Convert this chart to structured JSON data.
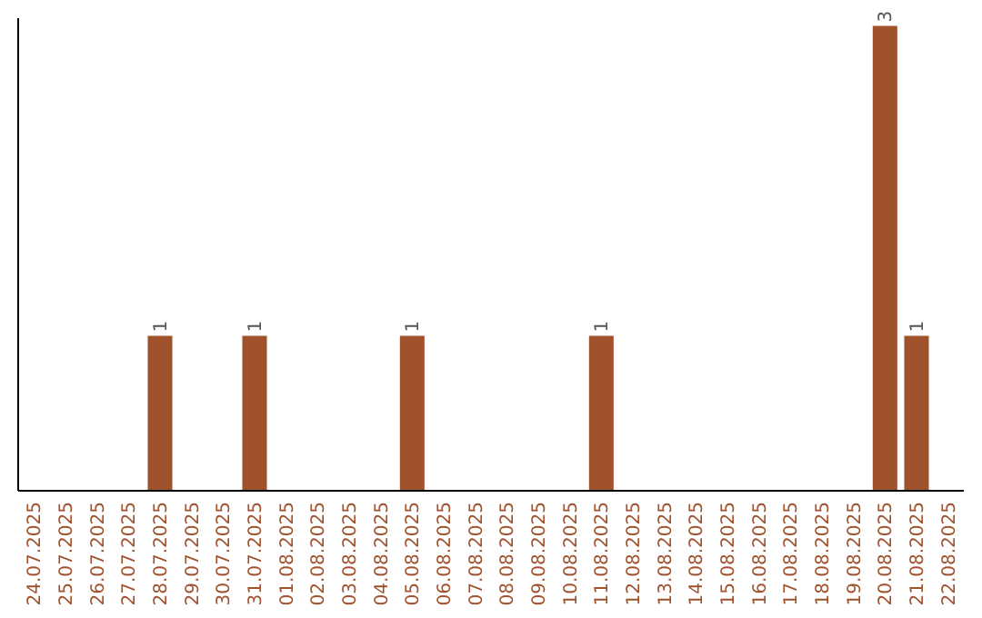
{
  "chart_data": {
    "type": "bar",
    "categories": [
      "24.07.2025",
      "25.07.2025",
      "26.07.2025",
      "27.07.2025",
      "28.07.2025",
      "29.07.2025",
      "30.07.2025",
      "31.07.2025",
      "01.08.2025",
      "02.08.2025",
      "03.08.2025",
      "04.08.2025",
      "05.08.2025",
      "06.08.2025",
      "07.08.2025",
      "08.08.2025",
      "09.08.2025",
      "10.08.2025",
      "11.08.2025",
      "12.08.2025",
      "13.08.2025",
      "14.08.2025",
      "15.08.2025",
      "16.08.2025",
      "17.08.2025",
      "18.08.2025",
      "19.08.2025",
      "20.08.2025",
      "21.08.2025",
      "22.08.2025"
    ],
    "values": [
      0,
      0,
      0,
      0,
      1,
      0,
      0,
      1,
      0,
      0,
      0,
      0,
      1,
      0,
      0,
      0,
      0,
      0,
      1,
      0,
      0,
      0,
      0,
      0,
      0,
      0,
      0,
      3,
      1,
      0
    ],
    "value_labels": [
      null,
      null,
      null,
      null,
      "1",
      null,
      null,
      "1",
      null,
      null,
      null,
      null,
      "1",
      null,
      null,
      null,
      null,
      null,
      "1",
      null,
      null,
      null,
      null,
      null,
      null,
      null,
      null,
      "3",
      "1",
      null
    ],
    "color": "#a0522d",
    "ylim": [
      0,
      3.05
    ],
    "tick_labels": "x"
  }
}
